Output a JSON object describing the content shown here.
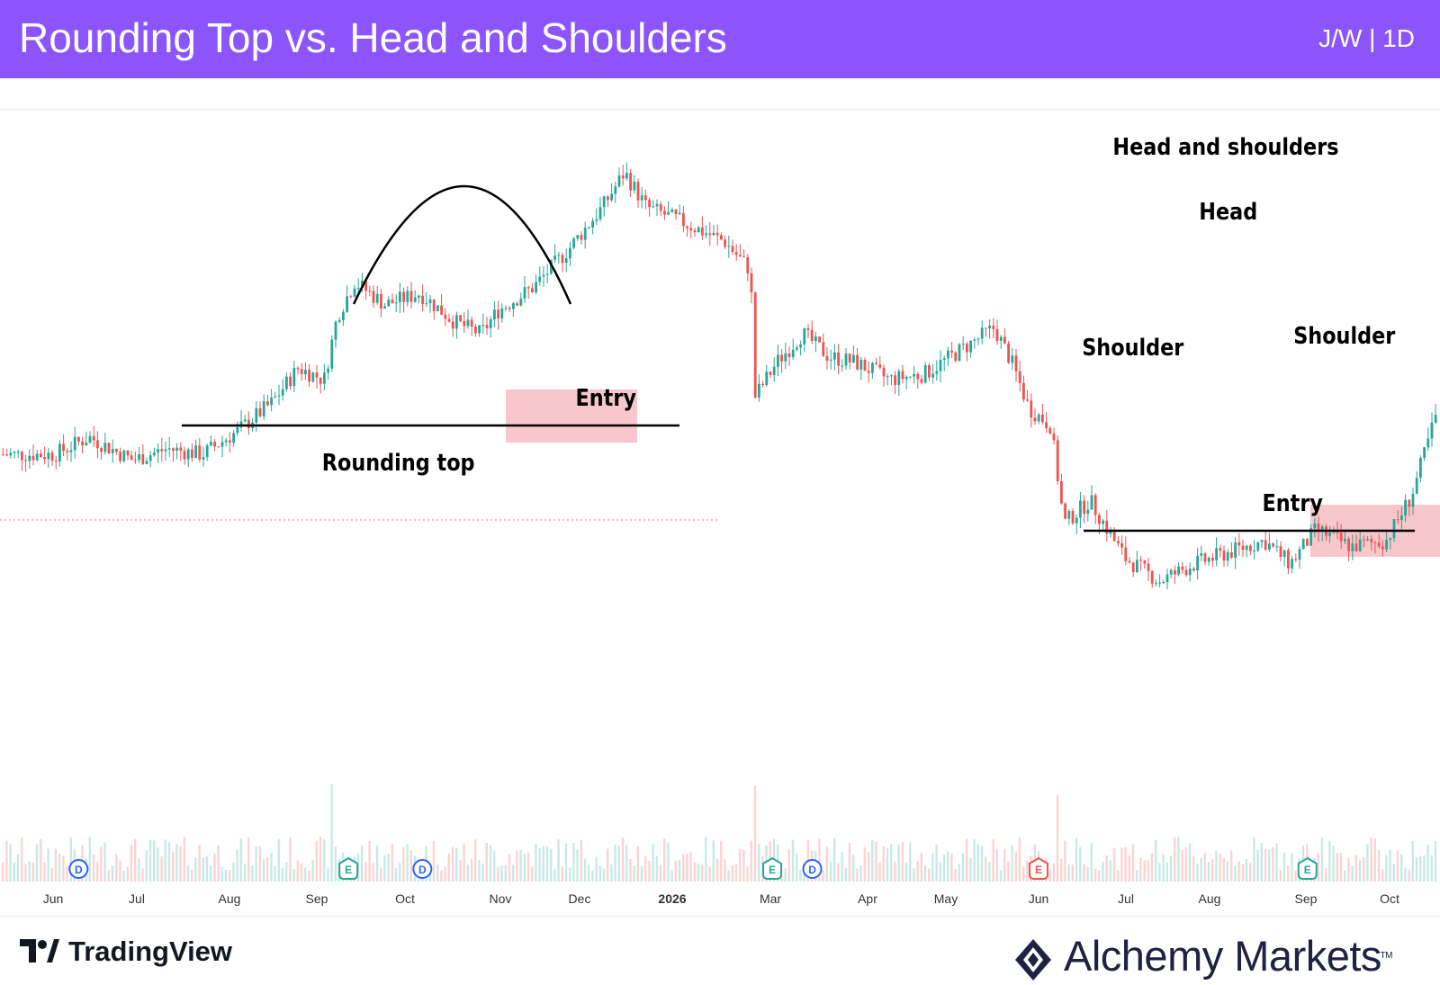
{
  "header": {
    "title": "Rounding Top vs. Head and Shoulders",
    "symbol": "J/W | 1D",
    "background": "#8b55fb"
  },
  "chart_data": {
    "type": "candlestick",
    "title": "Rounding Top vs. Head and Shoulders",
    "xlabel": "",
    "ylabel": "",
    "grid": false,
    "x_ticks": [
      "Jun",
      "Jul",
      "Aug",
      "Sep",
      "Oct",
      "Nov",
      "Dec",
      "2026",
      "Mar",
      "Apr",
      "May",
      "Jun",
      "Jul",
      "Aug",
      "Sep",
      "Oct"
    ],
    "bold_ticks": [
      "2026"
    ],
    "y_axis": "hidden",
    "colors": {
      "up": "#26a69a",
      "down": "#ef5350",
      "entry_zone": "#f4b4b9"
    },
    "price_path": [
      {
        "x": 0,
        "y": 64
      },
      {
        "x": 0.4,
        "y": 70
      },
      {
        "x": 0.9,
        "y": 62
      },
      {
        "x": 1.3,
        "y": 66
      },
      {
        "x": 1.7,
        "y": 64
      },
      {
        "x": 2.1,
        "y": 72
      },
      {
        "x": 2.5,
        "y": 82
      },
      {
        "x": 2.8,
        "y": 94
      },
      {
        "x": 3.1,
        "y": 90
      },
      {
        "x": 3.25,
        "y": 112
      },
      {
        "x": 3.45,
        "y": 124
      },
      {
        "x": 3.8,
        "y": 116
      },
      {
        "x": 4.2,
        "y": 120
      },
      {
        "x": 4.6,
        "y": 110
      },
      {
        "x": 4.9,
        "y": 106
      },
      {
        "x": 5.1,
        "y": 114
      },
      {
        "x": 5.5,
        "y": 122
      },
      {
        "x": 5.9,
        "y": 135
      },
      {
        "x": 6.3,
        "y": 150
      },
      {
        "x": 6.55,
        "y": 162
      },
      {
        "x": 6.8,
        "y": 150
      },
      {
        "x": 7.2,
        "y": 145
      },
      {
        "x": 7.7,
        "y": 138
      },
      {
        "x": 8.0,
        "y": 128
      },
      {
        "x": 8.05,
        "y": 84
      },
      {
        "x": 8.3,
        "y": 96
      },
      {
        "x": 8.6,
        "y": 106
      },
      {
        "x": 8.9,
        "y": 98
      },
      {
        "x": 9.2,
        "y": 96
      },
      {
        "x": 9.6,
        "y": 90
      },
      {
        "x": 10.0,
        "y": 92
      },
      {
        "x": 10.4,
        "y": 100
      },
      {
        "x": 10.8,
        "y": 108
      },
      {
        "x": 11.0,
        "y": 96
      },
      {
        "x": 11.2,
        "y": 80
      },
      {
        "x": 11.45,
        "y": 74
      },
      {
        "x": 11.6,
        "y": 40
      },
      {
        "x": 11.9,
        "y": 48
      },
      {
        "x": 12.3,
        "y": 28
      },
      {
        "x": 12.7,
        "y": 20
      },
      {
        "x": 13.1,
        "y": 26
      },
      {
        "x": 13.5,
        "y": 30
      },
      {
        "x": 13.9,
        "y": 34
      },
      {
        "x": 14.2,
        "y": 26
      },
      {
        "x": 14.5,
        "y": 38
      },
      {
        "x": 14.9,
        "y": 32
      },
      {
        "x": 15.3,
        "y": 34
      },
      {
        "x": 15.6,
        "y": 50
      },
      {
        "x": 15.9,
        "y": 80
      },
      {
        "x": 16.3,
        "y": 92
      },
      {
        "x": 16.7,
        "y": 112
      },
      {
        "x": 17.0,
        "y": 124
      },
      {
        "x": 17.2,
        "y": 106
      },
      {
        "x": 17.5,
        "y": 130
      },
      {
        "x": 17.9,
        "y": 134
      },
      {
        "x": 18.2,
        "y": 140
      },
      {
        "x": 18.5,
        "y": 170
      },
      {
        "x": 18.8,
        "y": 150
      },
      {
        "x": 19.1,
        "y": 130
      },
      {
        "x": 19.4,
        "y": 120
      },
      {
        "x": 19.7,
        "y": 114
      },
      {
        "x": 20.0,
        "y": 132
      },
      {
        "x": 20.3,
        "y": 130
      },
      {
        "x": 20.6,
        "y": 114
      },
      {
        "x": 21.0,
        "y": 102
      },
      {
        "x": 21.4,
        "y": 92
      },
      {
        "x": 21.8,
        "y": 80
      },
      {
        "x": 22.2,
        "y": 68
      }
    ],
    "events": [
      {
        "letter": "D",
        "x": 0.5,
        "kind": "dividend"
      },
      {
        "letter": "E",
        "x": 3.6,
        "kind": "earnings-up"
      },
      {
        "letter": "D",
        "x": 4.45,
        "kind": "dividend"
      },
      {
        "letter": "E",
        "x": 8.47,
        "kind": "earnings-up"
      },
      {
        "letter": "D",
        "x": 8.93,
        "kind": "dividend"
      },
      {
        "letter": "E",
        "x": 11.53,
        "kind": "earnings-down"
      },
      {
        "letter": "E",
        "x": 14.62,
        "kind": "earnings-up"
      },
      {
        "letter": "E",
        "x": 18.6,
        "kind": "earnings-up"
      }
    ],
    "annotations": {
      "rounding_top": {
        "label": "Rounding top",
        "entry_label": "Entry"
      },
      "head_and_shoulders": {
        "title": "Head and shoulders",
        "head_label": "Head",
        "left_shoulder_label": "Shoulder",
        "right_shoulder_label": "Shoulder",
        "entry_label": "Entry"
      }
    }
  },
  "footer": {
    "left_brand": "TradingView",
    "right_brand": "Alchemy Markets",
    "tm": "TM"
  }
}
